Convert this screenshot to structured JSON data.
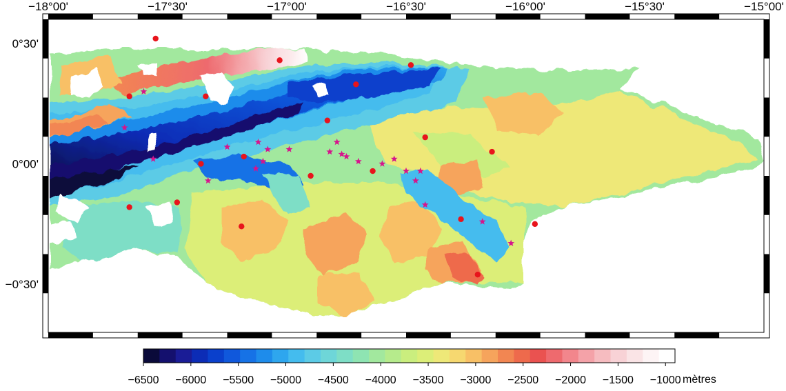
{
  "map": {
    "lon_range": [
      -18.0,
      -15.0
    ],
    "lat_range": [
      -0.7,
      0.6
    ],
    "lon_ticks": [
      {
        "value": -18.0,
        "label": "−18°00'"
      },
      {
        "value": -17.5,
        "label": "−17°30'"
      },
      {
        "value": -17.0,
        "label": "−17°00'"
      },
      {
        "value": -16.5,
        "label": "−16°30'"
      },
      {
        "value": -16.0,
        "label": "−16°00'"
      },
      {
        "value": -15.5,
        "label": "−15°30'"
      },
      {
        "value": -15.0,
        "label": "−15°00'"
      }
    ],
    "lat_ticks": [
      {
        "value": 0.5,
        "label": "0°30'"
      },
      {
        "value": 0.0,
        "label": "0°00'"
      },
      {
        "value": -0.5,
        "label": "−0°30'"
      }
    ],
    "dots": [
      [
        -17.55,
        0.52
      ],
      [
        -17.03,
        0.43
      ],
      [
        -16.48,
        0.41
      ],
      [
        -16.71,
        0.33
      ],
      [
        -17.66,
        0.28
      ],
      [
        -17.34,
        0.28
      ],
      [
        -16.83,
        0.18
      ],
      [
        -16.42,
        0.11
      ],
      [
        -16.14,
        0.05
      ],
      [
        -17.36,
        0.0
      ],
      [
        -17.18,
        0.03
      ],
      [
        -16.9,
        -0.05
      ],
      [
        -16.64,
        -0.03
      ],
      [
        -17.66,
        -0.18
      ],
      [
        -17.46,
        -0.16
      ],
      [
        -17.19,
        -0.26
      ],
      [
        -16.27,
        -0.23
      ],
      [
        -15.96,
        -0.25
      ],
      [
        -16.2,
        -0.46
      ]
    ],
    "stars": [
      [
        -17.6,
        0.3
      ],
      [
        -17.68,
        0.15
      ],
      [
        -17.56,
        0.02
      ],
      [
        -17.25,
        0.07
      ],
      [
        -17.12,
        0.09
      ],
      [
        -17.08,
        0.06
      ],
      [
        -16.99,
        0.06
      ],
      [
        -16.82,
        0.05
      ],
      [
        -16.79,
        0.09
      ],
      [
        -16.77,
        0.04
      ],
      [
        -16.75,
        0.03
      ],
      [
        -16.7,
        0.01
      ],
      [
        -16.6,
        0.0
      ],
      [
        -16.55,
        0.02
      ],
      [
        -16.5,
        -0.03
      ],
      [
        -16.46,
        -0.07
      ],
      [
        -16.44,
        -0.03
      ],
      [
        -16.42,
        -0.17
      ],
      [
        -16.18,
        -0.24
      ],
      [
        -17.33,
        -0.07
      ],
      [
        -17.13,
        -0.02
      ],
      [
        -17.1,
        0.01
      ],
      [
        -16.06,
        -0.33
      ]
    ],
    "marker_colors": {
      "dot": "#e8141c",
      "star": "#d6148c"
    },
    "nodata_color": "#ffffff"
  },
  "colorbar": {
    "unit": "mètres",
    "min": -6500,
    "max": -900,
    "tick_labels": [
      "−6500",
      "−6000",
      "−5500",
      "−5000",
      "−4500",
      "−4000",
      "−3500",
      "−3000",
      "−2500",
      "−2000",
      "−1500",
      "−1000"
    ],
    "tick_values": [
      -6500,
      -6000,
      -5500,
      -5000,
      -4500,
      -4000,
      -3500,
      -3000,
      -2500,
      -2000,
      -1500,
      -1000
    ],
    "colors": [
      "#0a0a3a",
      "#14106e",
      "#1a1c96",
      "#0c2cb6",
      "#0a40cc",
      "#1058dc",
      "#1672e6",
      "#1e8ceb",
      "#2ea6ee",
      "#44bcee",
      "#5ccbe6",
      "#6ed6d8",
      "#7edec6",
      "#8ee4b2",
      "#a2e89e",
      "#b6eb8c",
      "#caee7e",
      "#dcee78",
      "#eee878",
      "#f6d870",
      "#f8c066",
      "#f6a45c",
      "#f28652",
      "#ee6a4c",
      "#ea5250",
      "#ee6a6e",
      "#f2868c",
      "#f4a2a8",
      "#f6bcc0",
      "#f8d2d6",
      "#fae4e6",
      "#fdf4f5",
      "#ffffff"
    ]
  }
}
